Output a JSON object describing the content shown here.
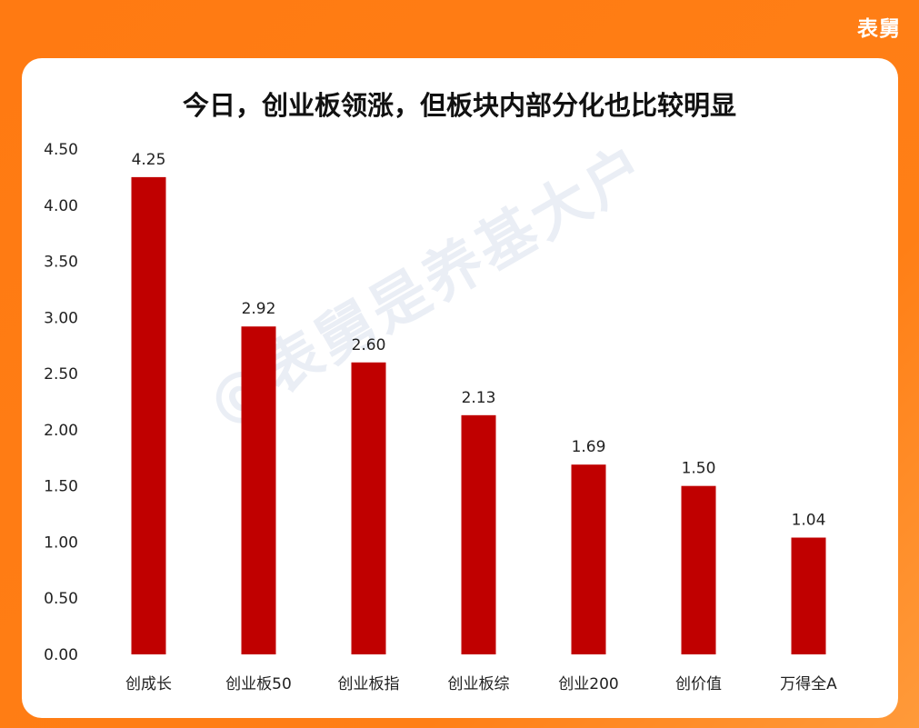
{
  "brand": "表舅",
  "watermark": "@表舅是养基大户",
  "colors": {
    "background": "#ff7f16",
    "bar": "#c00000",
    "card": "#ffffff"
  },
  "chart_data": {
    "type": "bar",
    "title": "今日，创业板领涨，但板块内部分化也比较明显",
    "categories": [
      "创成长",
      "创业板50",
      "创业板指",
      "创业板综",
      "创业200",
      "创价值",
      "万得全A"
    ],
    "values": [
      4.25,
      2.92,
      2.6,
      2.13,
      1.69,
      1.5,
      1.04
    ],
    "value_labels": [
      "4.25",
      "2.92",
      "2.60",
      "2.13",
      "1.69",
      "1.50",
      "1.04"
    ],
    "yticks": [
      "0.00",
      "0.50",
      "1.00",
      "1.50",
      "2.00",
      "2.50",
      "3.00",
      "3.50",
      "4.00",
      "4.50"
    ],
    "ylim": [
      0,
      4.5
    ],
    "grid": false,
    "legend": "none"
  }
}
